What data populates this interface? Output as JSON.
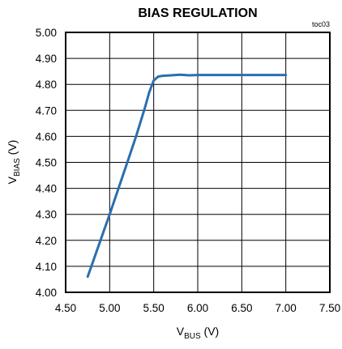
{
  "chart_data": {
    "type": "line",
    "title": "BIAS REGULATION",
    "annotation": "toc03",
    "xlabel": {
      "main": "V",
      "sub": "BUS",
      "unit": " (V)"
    },
    "ylabel": {
      "main": "V",
      "sub": "BIAS",
      "unit": " (V)"
    },
    "xlim": [
      4.5,
      7.5
    ],
    "ylim": [
      4.0,
      5.0
    ],
    "x_ticks": [
      "4.50",
      "5.00",
      "5.50",
      "6.00",
      "6.50",
      "7.00",
      "7.50"
    ],
    "y_ticks": [
      "4.00",
      "4.10",
      "4.20",
      "4.30",
      "4.40",
      "4.50",
      "4.60",
      "4.70",
      "4.80",
      "4.90",
      "5.00"
    ],
    "x_tick_values": [
      4.5,
      5.0,
      5.5,
      6.0,
      6.5,
      7.0,
      7.5
    ],
    "y_tick_values": [
      4.0,
      4.1,
      4.2,
      4.3,
      4.4,
      4.5,
      4.6,
      4.7,
      4.8,
      4.9,
      5.0
    ],
    "grid": true,
    "series": [
      {
        "color": "#2a6fb0",
        "x": [
          4.75,
          5.0,
          5.1,
          5.2,
          5.3,
          5.4,
          5.45,
          5.5,
          5.55,
          5.6,
          5.7,
          5.8,
          5.9,
          6.0,
          6.5,
          7.0
        ],
        "y": [
          4.06,
          4.3,
          4.4,
          4.5,
          4.6,
          4.71,
          4.77,
          4.815,
          4.83,
          4.833,
          4.835,
          4.837,
          4.835,
          4.836,
          4.836,
          4.836
        ]
      }
    ]
  }
}
